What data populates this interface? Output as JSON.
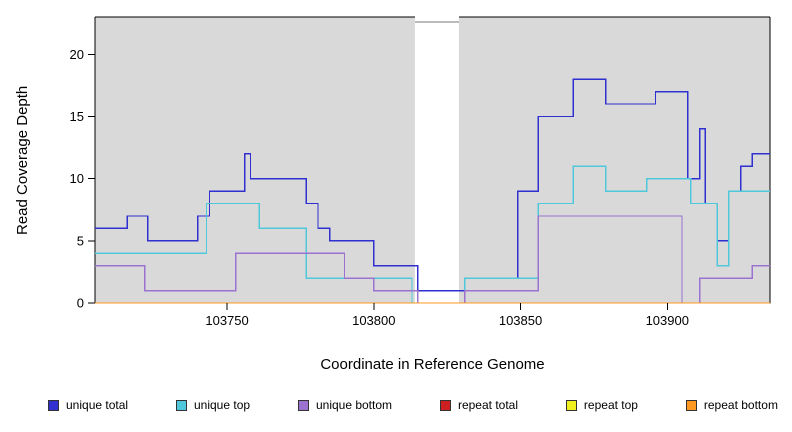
{
  "chart_data": {
    "type": "line",
    "step": true,
    "title": "",
    "xlabel": "Coordinate in Reference Genome",
    "ylabel": "Read Coverage Depth",
    "xlim": [
      103705,
      103935
    ],
    "ylim": [
      0,
      23
    ],
    "x_ticks": [
      103750,
      103800,
      103850,
      103900
    ],
    "y_ticks": [
      0,
      5,
      10,
      15,
      20
    ],
    "grid": false,
    "legend_position": "bottom",
    "background": {
      "panel_color": "#d9d9d9",
      "gap_color": "#ffffff",
      "covered_regions": [
        [
          103705,
          103814
        ],
        [
          103829,
          103935
        ]
      ],
      "gap_region": [
        103814,
        103829
      ]
    },
    "series": [
      {
        "name": "unique total",
        "color": "#3030d0",
        "points": [
          [
            103705,
            6
          ],
          [
            103716,
            7
          ],
          [
            103723,
            5
          ],
          [
            103740,
            7
          ],
          [
            103744,
            9
          ],
          [
            103756,
            12
          ],
          [
            103758,
            10
          ],
          [
            103777,
            8
          ],
          [
            103781,
            6
          ],
          [
            103785,
            5
          ],
          [
            103800,
            3
          ],
          [
            103815,
            1
          ],
          [
            103831,
            2
          ],
          [
            103849,
            9
          ],
          [
            103856,
            15
          ],
          [
            103868,
            18
          ],
          [
            103879,
            16
          ],
          [
            103896,
            17
          ],
          [
            103907,
            10
          ],
          [
            103911,
            14
          ],
          [
            103913,
            8
          ],
          [
            103917,
            5
          ],
          [
            103921,
            9
          ],
          [
            103925,
            11
          ],
          [
            103929,
            12
          ]
        ]
      },
      {
        "name": "unique top",
        "color": "#4fc8dc",
        "points": [
          [
            103705,
            4
          ],
          [
            103743,
            8
          ],
          [
            103761,
            6
          ],
          [
            103777,
            2
          ],
          [
            103813,
            0
          ],
          [
            103831,
            2
          ],
          [
            103856,
            8
          ],
          [
            103868,
            11
          ],
          [
            103879,
            9
          ],
          [
            103893,
            10
          ],
          [
            103908,
            8
          ],
          [
            103917,
            3
          ],
          [
            103921,
            9
          ]
        ]
      },
      {
        "name": "unique bottom",
        "color": "#9b72cf",
        "points": [
          [
            103705,
            3
          ],
          [
            103722,
            1
          ],
          [
            103753,
            4
          ],
          [
            103790,
            2
          ],
          [
            103800,
            1
          ],
          [
            103815,
            0
          ],
          [
            103831,
            1
          ],
          [
            103856,
            7
          ],
          [
            103905,
            0
          ],
          [
            103911,
            2
          ],
          [
            103929,
            3
          ]
        ]
      },
      {
        "name": "repeat total",
        "color": "#cc2020",
        "points": [
          [
            103705,
            0
          ],
          [
            103935,
            0
          ]
        ]
      },
      {
        "name": "repeat top",
        "color": "#f0f020",
        "points": [
          [
            103705,
            0
          ],
          [
            103935,
            0
          ]
        ]
      },
      {
        "name": "repeat bottom",
        "color": "#ff9820",
        "points": [
          [
            103705,
            0
          ],
          [
            103935,
            0
          ]
        ]
      }
    ]
  }
}
